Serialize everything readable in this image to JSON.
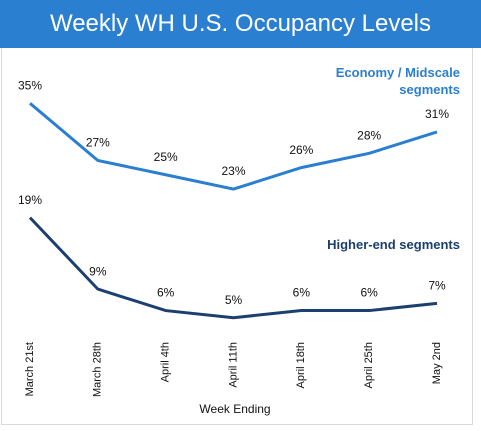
{
  "chart_data": {
    "type": "line",
    "title": "Weekly WH U.S. Occupancy Levels",
    "x_label": "Week Ending",
    "categories": [
      "March 21st",
      "March 28th",
      "April 4th",
      "April 11th",
      "April 18th",
      "April 25th",
      "May 2nd"
    ],
    "series": [
      {
        "name": "Economy / Midscale segments",
        "color": "#2b7fd0",
        "values": [
          35,
          27,
          25,
          23,
          26,
          28,
          31
        ],
        "value_labels": [
          "35%",
          "27%",
          "25%",
          "23%",
          "26%",
          "28%",
          "31%"
        ]
      },
      {
        "name": "Higher-end segments",
        "color": "#1b3f6e",
        "values": [
          19,
          9,
          6,
          5,
          6,
          6,
          7
        ],
        "value_labels": [
          "19%",
          "9%",
          "6%",
          "5%",
          "6%",
          "6%",
          "7%"
        ]
      }
    ],
    "ylim": [
      3,
      37
    ]
  }
}
